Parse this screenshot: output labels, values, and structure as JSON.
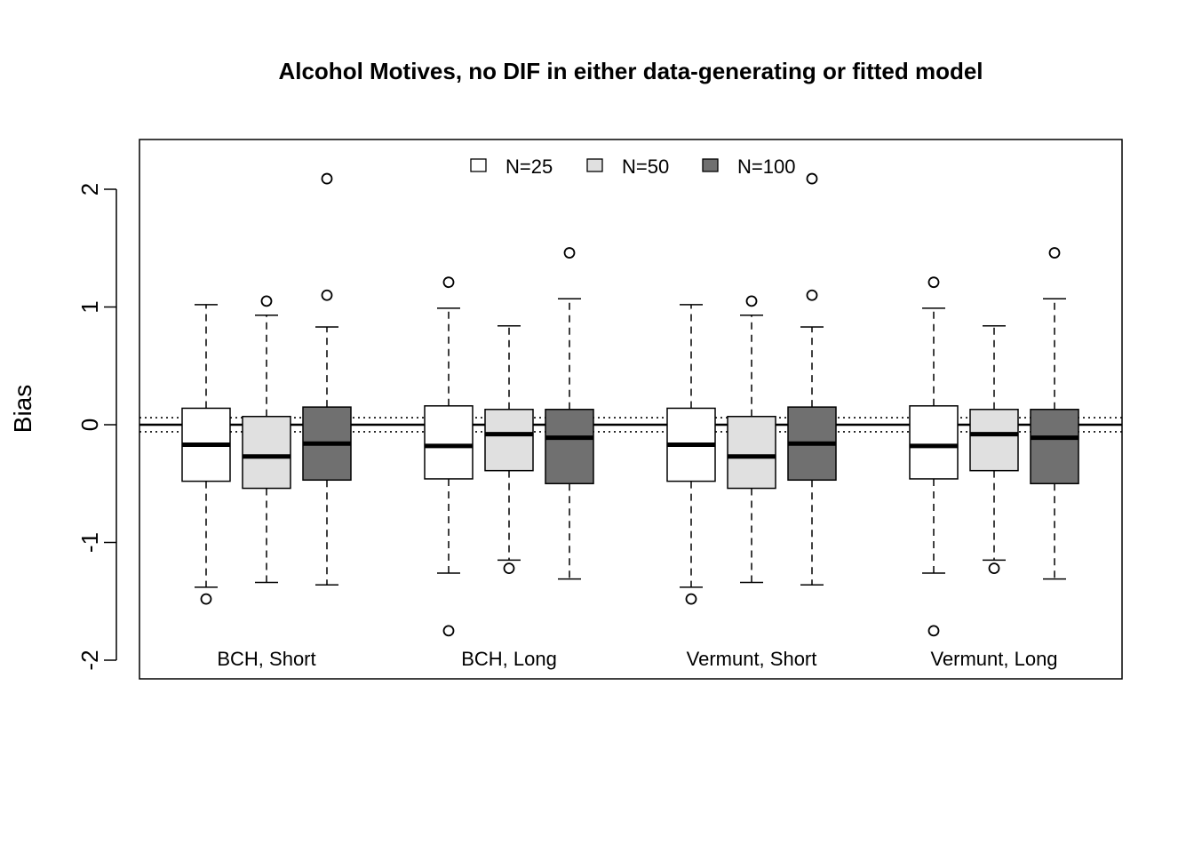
{
  "chart_data": {
    "type": "boxplot",
    "title": "Alcohol Motives, no DIF in either data-generating or fitted model",
    "ylabel": "Bias",
    "xlabel": "",
    "ylim": [
      -2.2,
      2.4
    ],
    "yticks": [
      -2,
      -1,
      0,
      1,
      2
    ],
    "ytick_labels": [
      "-2",
      "-1",
      "0",
      "1",
      "2"
    ],
    "legend": {
      "position": "top-center",
      "entries": [
        {
          "label": "N=25",
          "color": "#ffffff"
        },
        {
          "label": "N=50",
          "color": "#e0e0e0"
        },
        {
          "label": "N=100",
          "color": "#707070"
        }
      ]
    },
    "reference_lines": [
      {
        "y": 0,
        "style": "solid"
      },
      {
        "y": 0.06,
        "style": "dotted"
      },
      {
        "y": -0.06,
        "style": "dotted"
      }
    ],
    "groups": [
      {
        "label": "BCH, Short",
        "boxes": [
          {
            "series": "N=25",
            "whisker_low": -1.38,
            "q1": -0.48,
            "median": -0.17,
            "q3": 0.14,
            "whisker_high": 1.02,
            "outliers": [
              -1.48
            ]
          },
          {
            "series": "N=50",
            "whisker_low": -1.34,
            "q1": -0.54,
            "median": -0.27,
            "q3": 0.07,
            "whisker_high": 0.93,
            "outliers": [
              1.05
            ]
          },
          {
            "series": "N=100",
            "whisker_low": -1.36,
            "q1": -0.47,
            "median": -0.16,
            "q3": 0.15,
            "whisker_high": 0.83,
            "outliers": [
              1.1,
              2.09
            ]
          }
        ]
      },
      {
        "label": "BCH, Long",
        "boxes": [
          {
            "series": "N=25",
            "whisker_low": -1.26,
            "q1": -0.46,
            "median": -0.18,
            "q3": 0.16,
            "whisker_high": 0.99,
            "outliers": [
              1.21,
              -1.75
            ]
          },
          {
            "series": "N=50",
            "whisker_low": -1.15,
            "q1": -0.39,
            "median": -0.08,
            "q3": 0.13,
            "whisker_high": 0.84,
            "outliers": [
              -1.22
            ]
          },
          {
            "series": "N=100",
            "whisker_low": -1.31,
            "q1": -0.5,
            "median": -0.11,
            "q3": 0.13,
            "whisker_high": 1.07,
            "outliers": [
              1.46
            ]
          }
        ]
      },
      {
        "label": "Vermunt, Short",
        "boxes": [
          {
            "series": "N=25",
            "whisker_low": -1.38,
            "q1": -0.48,
            "median": -0.17,
            "q3": 0.14,
            "whisker_high": 1.02,
            "outliers": [
              -1.48
            ]
          },
          {
            "series": "N=50",
            "whisker_low": -1.34,
            "q1": -0.54,
            "median": -0.27,
            "q3": 0.07,
            "whisker_high": 0.93,
            "outliers": [
              1.05
            ]
          },
          {
            "series": "N=100",
            "whisker_low": -1.36,
            "q1": -0.47,
            "median": -0.16,
            "q3": 0.15,
            "whisker_high": 0.83,
            "outliers": [
              1.1,
              2.09
            ]
          }
        ]
      },
      {
        "label": "Vermunt, Long",
        "boxes": [
          {
            "series": "N=25",
            "whisker_low": -1.26,
            "q1": -0.46,
            "median": -0.18,
            "q3": 0.16,
            "whisker_high": 0.99,
            "outliers": [
              1.21,
              -1.75
            ]
          },
          {
            "series": "N=50",
            "whisker_low": -1.15,
            "q1": -0.39,
            "median": -0.08,
            "q3": 0.13,
            "whisker_high": 0.84,
            "outliers": [
              -1.22
            ]
          },
          {
            "series": "N=100",
            "whisker_low": -1.31,
            "q1": -0.5,
            "median": -0.11,
            "q3": 0.13,
            "whisker_high": 1.07,
            "outliers": [
              1.46
            ]
          }
        ]
      }
    ]
  }
}
